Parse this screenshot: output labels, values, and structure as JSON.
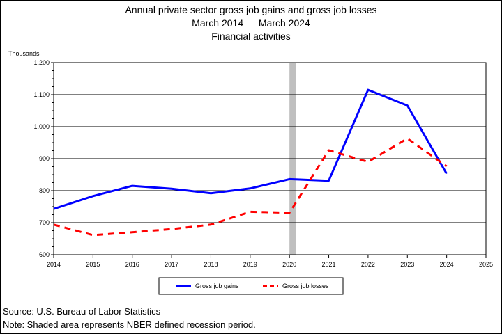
{
  "chart_data": {
    "type": "line",
    "title": [
      "Annual private sector gross job gains and gross job losses",
      "March 2014 — March 2024",
      "Financial activities"
    ],
    "ylabel": "Thousands",
    "xlabel": "",
    "xlim": [
      2014,
      2025
    ],
    "ylim": [
      600,
      1200
    ],
    "xticks": [
      2014,
      2015,
      2016,
      2017,
      2018,
      2019,
      2020,
      2021,
      2022,
      2023,
      2024,
      2025
    ],
    "yticks": [
      600,
      700,
      800,
      900,
      1000,
      1100,
      1200
    ],
    "ytick_labels": [
      "600",
      "700",
      "800",
      "900",
      "1,000",
      "1,100",
      "1,200"
    ],
    "grid": "horizontal",
    "recession": {
      "start": 2020.0,
      "end": 2020.17,
      "color": "#bfbfbf"
    },
    "legend_position": "bottom-center",
    "series": [
      {
        "name": "Gross job gains",
        "color": "#0000ff",
        "style": "solid",
        "x": [
          2014,
          2015,
          2016,
          2017,
          2018,
          2019,
          2020,
          2021,
          2022,
          2023,
          2024
        ],
        "values": [
          743,
          783,
          815,
          806,
          792,
          807,
          836,
          831,
          1115,
          1066,
          853
        ]
      },
      {
        "name": "Gross job losses",
        "color": "#ff0000",
        "style": "dashed",
        "x": [
          2014,
          2015,
          2016,
          2017,
          2018,
          2019,
          2020,
          2021,
          2022,
          2023,
          2024
        ],
        "values": [
          694,
          661,
          670,
          680,
          694,
          734,
          731,
          926,
          890,
          963,
          876
        ]
      }
    ]
  },
  "notes": {
    "source": "Source: U.S. Bureau of Labor Statistics",
    "note": "Note: Shaded area represents NBER defined recession period."
  }
}
